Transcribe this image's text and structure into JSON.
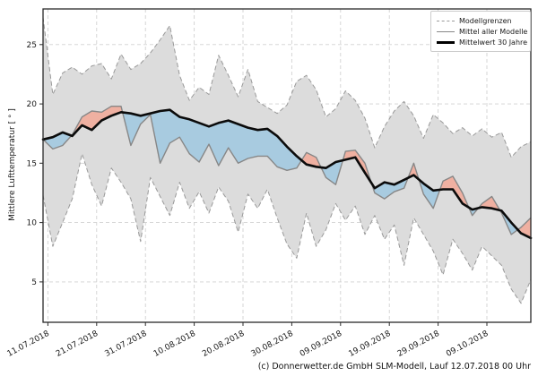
{
  "figure": {
    "background": "#ffffff"
  },
  "axes": {
    "ylabel": "Mittlere Lufttemperatur [ ° ]",
    "y_ticks": [
      5,
      10,
      15,
      20,
      25
    ],
    "ylim": [
      1.6,
      28.0
    ],
    "grid": true
  },
  "legend": {
    "position": "upper right",
    "items": [
      {
        "label": "Modellgrenzen",
        "swatch": "dashed-gray-line"
      },
      {
        "label": "Mittel aller Modelle",
        "swatch": "solid-gray-line"
      },
      {
        "label": "Mittelwert 30 Jahre",
        "swatch": "thick-black-line"
      }
    ]
  },
  "caption": "(c) Donnerwetter.de GmbH SLM-Modell, Lauf 12.07.2018 00 Uhr",
  "chart_data": {
    "type": "line",
    "title": "",
    "ylabel": "Mittlere Lufttemperatur [ ° ]",
    "grid": true,
    "legend_position": "upper right",
    "ylim": [
      1.6,
      28.0
    ],
    "x_total_days": 100,
    "x_ticks": [
      {
        "label": "11.07.2018",
        "day": 1
      },
      {
        "label": "21.07.2018",
        "day": 11
      },
      {
        "label": "31.07.2018",
        "day": 21
      },
      {
        "label": "10.08.2018",
        "day": 31
      },
      {
        "label": "20.08.2018",
        "day": 41
      },
      {
        "label": "30.08.2018",
        "day": 51
      },
      {
        "label": "09.09.2018",
        "day": 61
      },
      {
        "label": "19.09.2018",
        "day": 71
      },
      {
        "label": "29.09.2018",
        "day": 81
      },
      {
        "label": "09.10.2018",
        "day": 91
      }
    ],
    "x": [
      "10.07",
      "12.07",
      "14.07",
      "16.07",
      "18.07",
      "20.07",
      "22.07",
      "24.07",
      "26.07",
      "28.07",
      "30.07",
      "01.08",
      "03.08",
      "05.08",
      "07.08",
      "09.08",
      "11.08",
      "13.08",
      "15.08",
      "17.08",
      "19.08",
      "21.08",
      "23.08",
      "25.08",
      "27.08",
      "29.08",
      "31.08",
      "02.09",
      "04.09",
      "06.09",
      "08.09",
      "10.09",
      "12.09",
      "14.09",
      "16.09",
      "18.09",
      "20.09",
      "22.09",
      "24.09",
      "26.09",
      "28.09",
      "30.09",
      "02.10",
      "04.10",
      "06.10",
      "08.10",
      "10.10",
      "12.10",
      "14.10",
      "16.10",
      "18.10"
    ],
    "series": [
      {
        "name": "Modellgrenzen (obere Grenze)",
        "role": "upper_bound",
        "color": "#999999",
        "style": "dashed",
        "values": [
          27.3,
          20.8,
          22.6,
          23.1,
          22.5,
          23.2,
          23.4,
          22.1,
          24.2,
          22.9,
          23.4,
          24.3,
          25.4,
          26.6,
          22.4,
          20.3,
          21.4,
          20.8,
          24.1,
          22.4,
          20.6,
          22.9,
          20.2,
          19.7,
          19.2,
          19.9,
          21.9,
          22.4,
          21.2,
          18.9,
          19.6,
          21.1,
          20.3,
          18.8,
          16.3,
          18.1,
          19.4,
          20.2,
          19.0,
          17.1,
          19.1,
          18.4,
          17.5,
          18.0,
          17.3,
          17.9,
          17.2,
          17.6,
          15.5,
          16.4,
          16.8
        ]
      },
      {
        "name": "Modellgrenzen (untere Grenze)",
        "role": "lower_bound",
        "color": "#999999",
        "style": "dashed",
        "values": [
          12.3,
          8.0,
          10.0,
          12.0,
          15.8,
          13.2,
          11.4,
          14.6,
          13.4,
          12.0,
          8.4,
          13.8,
          12.2,
          10.6,
          13.4,
          11.2,
          12.6,
          10.8,
          13.0,
          11.8,
          9.2,
          12.4,
          11.2,
          12.8,
          10.4,
          8.2,
          7.0,
          10.8,
          8.0,
          9.4,
          11.6,
          10.2,
          11.4,
          9.0,
          10.6,
          8.6,
          9.8,
          6.4,
          10.4,
          9.0,
          7.6,
          5.6,
          8.6,
          7.4,
          6.0,
          8.0,
          7.2,
          6.4,
          4.4,
          3.2,
          5.2
        ]
      },
      {
        "name": "Mittel aller Modelle",
        "role": "model_mean",
        "color": "#878787",
        "style": "solid",
        "values": [
          17.0,
          16.2,
          16.5,
          17.4,
          18.9,
          19.4,
          19.3,
          19.8,
          19.8,
          16.5,
          18.3,
          19.1,
          15.0,
          16.7,
          17.2,
          15.8,
          15.1,
          16.6,
          14.8,
          16.3,
          15.0,
          15.4,
          15.6,
          15.6,
          14.7,
          14.4,
          14.6,
          15.9,
          15.5,
          13.8,
          13.2,
          16.0,
          16.1,
          15.0,
          12.5,
          12.0,
          12.6,
          12.9,
          15.0,
          12.4,
          11.2,
          13.5,
          13.9,
          12.5,
          10.6,
          11.6,
          12.2,
          10.8,
          9.0,
          9.6,
          10.4
        ]
      },
      {
        "name": "Mittelwert 30 Jahre",
        "role": "climate_mean",
        "color": "#000000",
        "style": "solid-thick",
        "values": [
          17.0,
          17.2,
          17.6,
          17.3,
          18.2,
          17.8,
          18.6,
          19.0,
          19.3,
          19.2,
          19.0,
          19.2,
          19.4,
          19.5,
          18.9,
          18.7,
          18.4,
          18.1,
          18.4,
          18.6,
          18.3,
          18.0,
          17.8,
          17.9,
          17.3,
          16.4,
          15.6,
          14.9,
          14.7,
          14.6,
          15.1,
          15.3,
          15.5,
          14.2,
          12.9,
          13.4,
          13.2,
          13.6,
          14.0,
          13.3,
          12.7,
          12.8,
          12.8,
          11.6,
          11.1,
          11.3,
          11.2,
          11.0,
          10.0,
          9.1,
          8.7
        ]
      }
    ],
    "fills": {
      "envelope": "#dcdcdc",
      "above_normal": "#efb0a1",
      "below_normal": "#a8cbe0"
    }
  }
}
